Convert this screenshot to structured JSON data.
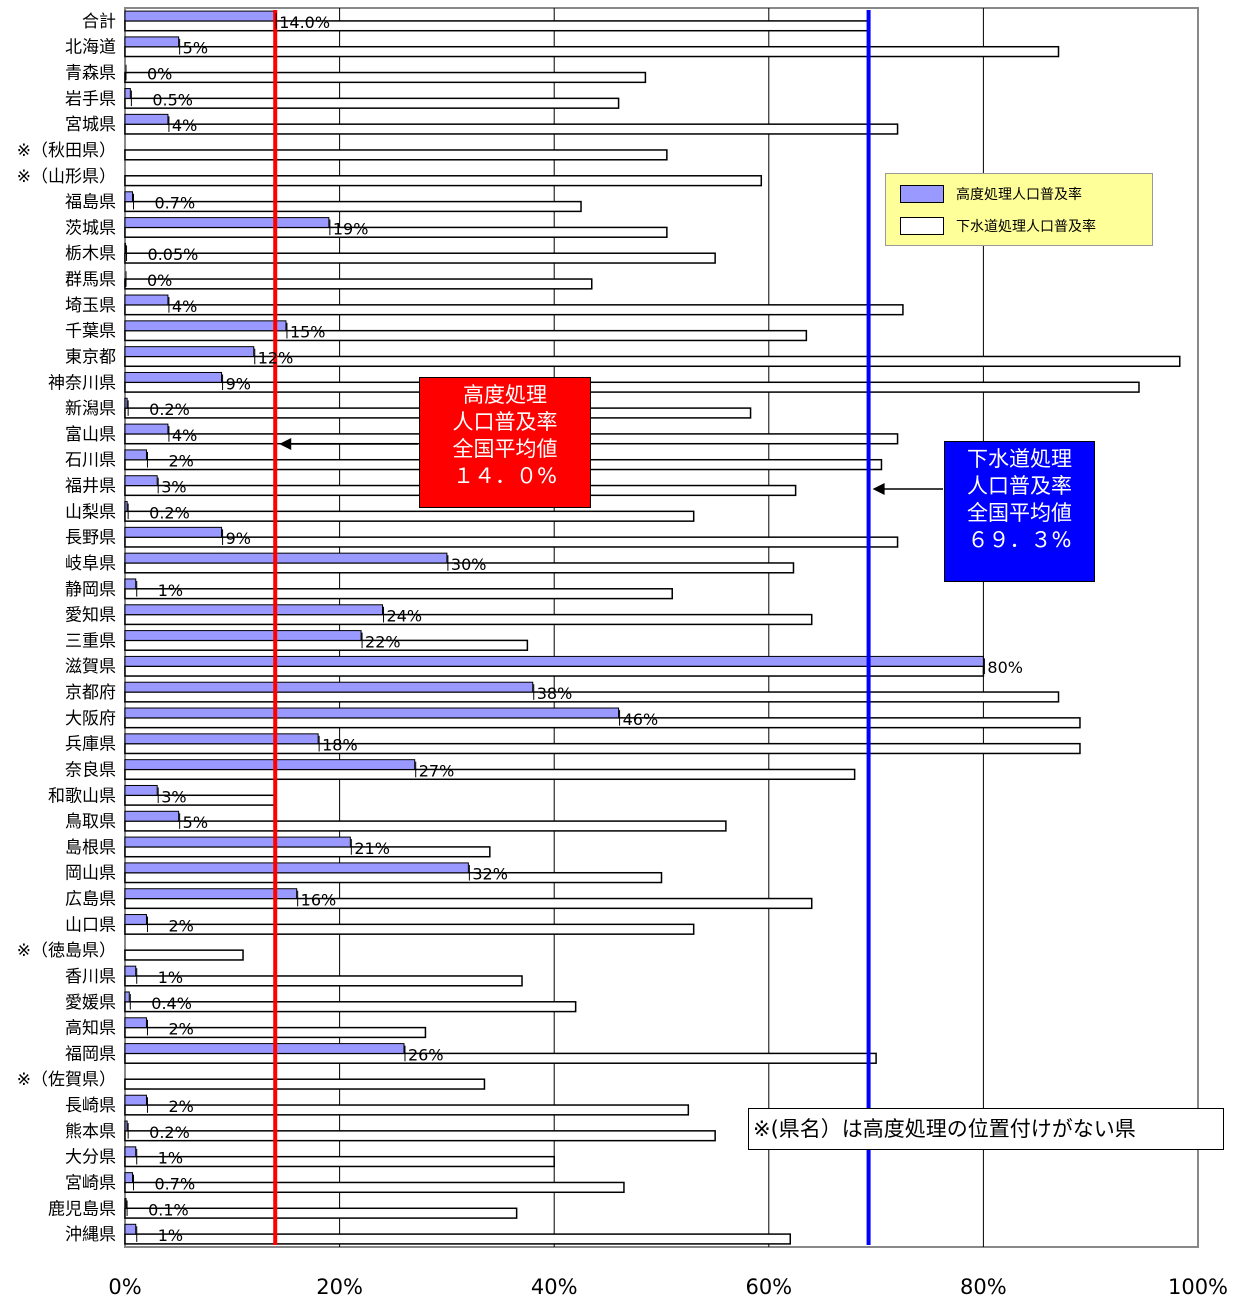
{
  "chart_data": {
    "type": "bar",
    "orientation": "horizontal",
    "xlim": [
      0,
      100
    ],
    "x_ticks": [
      "0%",
      "20%",
      "40%",
      "60%",
      "80%",
      "100%"
    ],
    "grid": "vertical",
    "legend_position": "top-right",
    "categories": [
      "合計",
      "北海道",
      "青森県",
      "岩手県",
      "宮城県",
      "※（秋田県）",
      "※（山形県）",
      "福島県",
      "茨城県",
      "栃木県",
      "群馬県",
      "埼玉県",
      "千葉県",
      "東京都",
      "神奈川県",
      "新潟県",
      "富山県",
      "石川県",
      "福井県",
      "山梨県",
      "長野県",
      "岐阜県",
      "静岡県",
      "愛知県",
      "三重県",
      "滋賀県",
      "京都府",
      "大阪府",
      "兵庫県",
      "奈良県",
      "和歌山県",
      "鳥取県",
      "島根県",
      "岡山県",
      "広島県",
      "山口県",
      "※（徳島県）",
      "香川県",
      "愛媛県",
      "高知県",
      "福岡県",
      "※（佐賀県）",
      "長崎県",
      "熊本県",
      "大分県",
      "宮崎県",
      "鹿児島県",
      "沖縄県"
    ],
    "series": [
      {
        "name": "高度処理人口普及率",
        "color": "#9999ff",
        "values": [
          14.0,
          5,
          0,
          0.5,
          4,
          null,
          null,
          0.7,
          19,
          0.05,
          0,
          4,
          15,
          12,
          9,
          0.2,
          4,
          2,
          3,
          0.2,
          9,
          30,
          1,
          24,
          22,
          80,
          38,
          46,
          18,
          27,
          3,
          5,
          21,
          32,
          16,
          2,
          null,
          1,
          0.4,
          2,
          26,
          null,
          2,
          0.2,
          1,
          0.7,
          0.1,
          1
        ],
        "labels": [
          "14.0%",
          "5%",
          "0%",
          "0.5%",
          "4%",
          null,
          null,
          "0.7%",
          "19%",
          "0.05%",
          "0%",
          "4%",
          "15%",
          "12%",
          "9%",
          "0.2%",
          "4%",
          "2%",
          "3%",
          "0.2%",
          "9%",
          "30%",
          "1%",
          "24%",
          "22%",
          "80%",
          "38%",
          "46%",
          "18%",
          "27%",
          "3%",
          "5%",
          "21%",
          "32%",
          "16%",
          "2%",
          null,
          "1%",
          "0.4%",
          "2%",
          "26%",
          null,
          "2%",
          "0.2%",
          "1%",
          "0.7%",
          "0.1%",
          "1%"
        ]
      },
      {
        "name": "下水道処理人口普及率",
        "color": "#ffffff",
        "values": [
          69.3,
          87,
          48.5,
          46,
          72,
          50.5,
          59.3,
          42.5,
          50.5,
          55,
          43.5,
          72.5,
          63.5,
          98.3,
          94.5,
          58.3,
          72,
          70.5,
          62.5,
          53,
          72,
          62.3,
          51,
          64,
          37.5,
          80,
          87,
          89,
          89,
          68,
          14,
          56,
          34,
          50,
          64,
          53,
          11,
          37,
          42,
          28,
          70,
          33.5,
          52.5,
          55,
          40,
          46.5,
          36.5,
          62
        ]
      }
    ],
    "reference_lines": [
      {
        "value": 14.0,
        "color": "#ff0000",
        "label_lines": [
          "高度処理",
          "人口普及率",
          "全国平均値",
          "１４．０%"
        ]
      },
      {
        "value": 69.3,
        "color": "#0000ff",
        "label_lines": [
          "下水道処理",
          "人口普及率",
          "全国平均値",
          "６９．３%"
        ]
      }
    ],
    "note": "※(県名）は高度処理の位置付けがない県"
  }
}
